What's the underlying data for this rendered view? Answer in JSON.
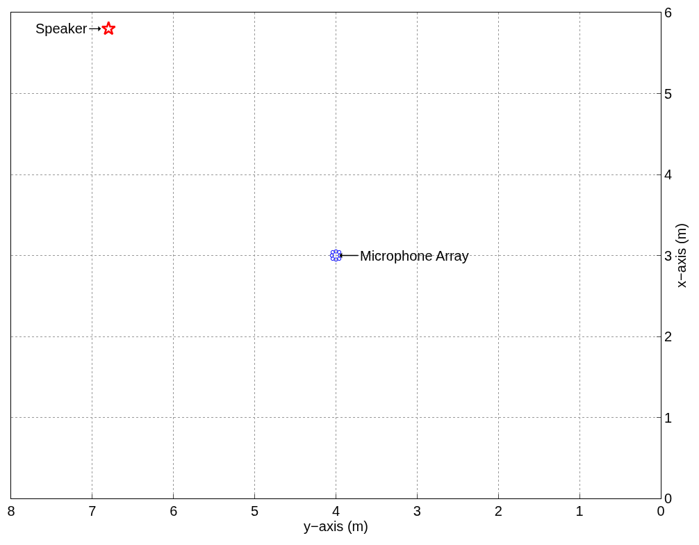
{
  "chart_data": {
    "type": "scatter",
    "xlabel": "y−axis (m)",
    "ylabel": "x−axis (m)",
    "xlim": [
      8,
      0
    ],
    "xticks": [
      8,
      7,
      6,
      5,
      4,
      3,
      2,
      1,
      0
    ],
    "ylim": [
      0,
      6
    ],
    "yticks": [
      0,
      1,
      2,
      3,
      4,
      5,
      6
    ],
    "grid": true,
    "series": [
      {
        "color": "#ff0000",
        "marker": "star",
        "x": [
          6.8
        ],
        "values": [
          5.8
        ]
      },
      {
        "color": "#0000ff",
        "marker": "circle",
        "x": [
          4.05,
          4.04,
          4,
          3.96,
          3.95,
          3.96,
          4,
          4.04
        ],
        "values": [
          3,
          3.04,
          3.05,
          3.04,
          3,
          2.96,
          2.95,
          2.96
        ]
      }
    ],
    "annotations": [
      {
        "text": "Speaker",
        "x": 6.8,
        "y": 5.8
      },
      {
        "text": "Microphone Array",
        "x": 4,
        "y": 3
      }
    ]
  }
}
